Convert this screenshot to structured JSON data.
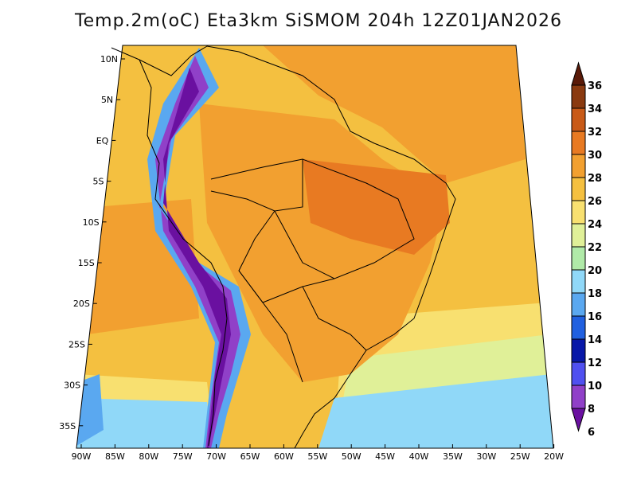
{
  "title": "Temp.2m(oC) Eta3km SiSMOM 204h 12Z01JAN2026",
  "lat_ticks": [
    "10N",
    "5N",
    "EQ",
    "5S",
    "10S",
    "15S",
    "20S",
    "25S",
    "30S",
    "35S"
  ],
  "lon_ticks": [
    "90W",
    "85W",
    "80W",
    "75W",
    "70W",
    "65W",
    "60W",
    "55W",
    "50W",
    "45W",
    "40W",
    "35W",
    "30W",
    "25W",
    "20W"
  ],
  "colorbar": {
    "labels": [
      "36",
      "34",
      "32",
      "30",
      "28",
      "26",
      "24",
      "22",
      "20",
      "18",
      "16",
      "14",
      "12",
      "10",
      "8",
      "6"
    ],
    "colors": [
      "#5a1a08",
      "#8a3a10",
      "#c85a18",
      "#e87a22",
      "#f2a030",
      "#f5c040",
      "#f8e070",
      "#e0f098",
      "#b0eaa8",
      "#90d8f8",
      "#5aa8f0",
      "#2060e0",
      "#0818a8",
      "#5050f0",
      "#9040c8",
      "#6a10a0"
    ]
  }
}
